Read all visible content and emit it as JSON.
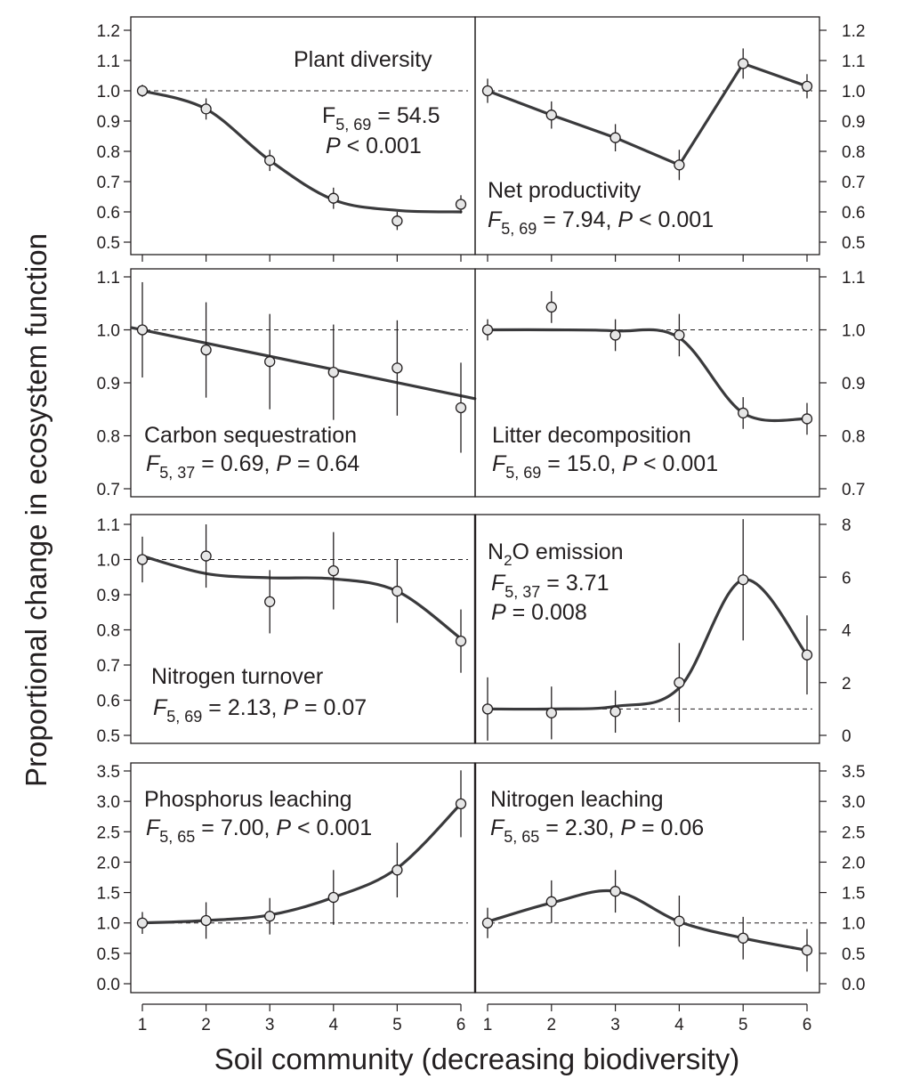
{
  "figure": {
    "ylabel": "Proportional change in ecosystem function",
    "xlabel": "Soil community (decreasing biodiversity)"
  },
  "chart_data": [
    {
      "type": "line",
      "title": "Plant diversity",
      "stat_line1": {
        "F": "F",
        "sub": "5, 69",
        "rest": " = 54.5"
      },
      "stat_line2": {
        "pre": "",
        "P": "P",
        "rest": " < 0.001"
      },
      "x": [
        1,
        2,
        3,
        4,
        5,
        6
      ],
      "y": [
        1.0,
        0.94,
        0.77,
        0.645,
        0.57,
        0.625
      ],
      "err": [
        0.02,
        0.035,
        0.035,
        0.035,
        0.03,
        0.03
      ],
      "fit": [
        1.0,
        0.94,
        0.77,
        0.64,
        0.605,
        0.6
      ],
      "fit_smooth": true,
      "ylim": [
        0.48,
        1.22
      ],
      "yticks": [
        "0.5",
        "0.6",
        "0.7",
        "0.8",
        "0.9",
        "1.0",
        "1.1",
        "1.2"
      ],
      "ytick_values": [
        0.5,
        0.6,
        0.7,
        0.8,
        0.9,
        1.0,
        1.1,
        1.2
      ],
      "ref": 1.0,
      "axis_side": "left"
    },
    {
      "type": "line",
      "title": "Net productivity",
      "stat_line1": {
        "F": "F",
        "sub": "5, 69",
        "rest": " = 7.94,  ",
        "P": "P",
        "rest2": " < 0.001"
      },
      "x": [
        1,
        2,
        3,
        4,
        5,
        6
      ],
      "y": [
        1.0,
        0.92,
        0.845,
        0.755,
        1.09,
        1.015
      ],
      "err": [
        0.04,
        0.045,
        0.045,
        0.05,
        0.05,
        0.04
      ],
      "fit": [
        1.0,
        0.92,
        0.845,
        0.755,
        1.09,
        1.015
      ],
      "fit_smooth": false,
      "ylim": [
        0.48,
        1.22
      ],
      "yticks": [
        "0.5",
        "0.6",
        "0.7",
        "0.8",
        "0.9",
        "1.0",
        "1.1",
        "1.2"
      ],
      "ytick_values": [
        0.5,
        0.6,
        0.7,
        0.8,
        0.9,
        1.0,
        1.1,
        1.2
      ],
      "ref": 1.0,
      "axis_side": "right"
    },
    {
      "type": "line",
      "title": "Carbon sequestration",
      "stat_line1": {
        "F": "F",
        "sub": "5, 37",
        "rest": " = 0.69,  ",
        "P": "P",
        "rest2": " = 0.64"
      },
      "x": [
        1,
        2,
        3,
        4,
        5,
        6
      ],
      "y": [
        1.0,
        0.962,
        0.94,
        0.92,
        0.928,
        0.853
      ],
      "err": [
        0.09,
        0.09,
        0.09,
        0.09,
        0.09,
        0.085
      ],
      "fit_line": {
        "x0": 0.83,
        "y0": 1.004,
        "x1": 6.22,
        "y1": 0.87
      },
      "ylim": [
        0.69,
        1.12
      ],
      "yticks": [
        "0.7",
        "0.8",
        "0.9",
        "1.0",
        "1.1"
      ],
      "ytick_values": [
        0.7,
        0.8,
        0.9,
        1.0,
        1.1
      ],
      "ref": 1.0,
      "axis_side": "left"
    },
    {
      "type": "line",
      "title": "Litter decomposition",
      "stat_line1": {
        "F": "F",
        "sub": "5, 69",
        "rest": " = 15.0,  ",
        "P": "P",
        "rest2": " < 0.001"
      },
      "x": [
        1,
        2,
        3,
        4,
        5,
        6
      ],
      "y": [
        1.0,
        1.043,
        0.99,
        0.99,
        0.843,
        0.832
      ],
      "err": [
        0.02,
        0.03,
        0.03,
        0.04,
        0.03,
        0.03
      ],
      "fit": [
        1.0,
        1.0,
        0.998,
        0.985,
        0.843,
        0.832
      ],
      "fit_smooth": true,
      "ylim": [
        0.69,
        1.12
      ],
      "yticks": [
        "0.7",
        "0.8",
        "0.9",
        "1.0",
        "1.1"
      ],
      "ytick_values": [
        0.7,
        0.8,
        0.9,
        1.0,
        1.1
      ],
      "ref": 1.0,
      "axis_side": "right"
    },
    {
      "type": "line",
      "title": "Nitrogen turnover",
      "stat_line1": {
        "F": "F",
        "sub": "5, 69",
        "rest": " = 2.13,  ",
        "P": "P",
        "rest2": " = 0.07"
      },
      "x": [
        1,
        2,
        3,
        4,
        5,
        6
      ],
      "y": [
        1.0,
        1.01,
        0.88,
        0.968,
        0.91,
        0.768
      ],
      "err": [
        0.065,
        0.09,
        0.09,
        0.11,
        0.09,
        0.09
      ],
      "fit": [
        1.01,
        0.96,
        0.948,
        0.945,
        0.91,
        0.775
      ],
      "fit_smooth": true,
      "ylim": [
        0.48,
        1.12
      ],
      "yticks": [
        "0.5",
        "0.6",
        "0.7",
        "0.8",
        "0.9",
        "1.0",
        "1.1"
      ],
      "ytick_values": [
        0.5,
        0.6,
        0.7,
        0.8,
        0.9,
        1.0,
        1.1
      ],
      "ref": 1.0,
      "axis_side": "left"
    },
    {
      "type": "line",
      "title_pre": "N",
      "title_sub": "2",
      "title_post": "O emission",
      "stat_line1": {
        "F": "F",
        "sub": "5, 37",
        "rest": " = 3.71"
      },
      "stat_line2": {
        "pre": "",
        "P": "P",
        "rest": " = 0.008"
      },
      "x": [
        1,
        2,
        3,
        4,
        5,
        6
      ],
      "y": [
        1.0,
        0.85,
        0.9,
        2.0,
        5.9,
        3.05
      ],
      "err": [
        1.2,
        1.0,
        0.8,
        1.5,
        2.3,
        1.5
      ],
      "fit": [
        1.0,
        1.0,
        1.1,
        1.8,
        5.9,
        3.05
      ],
      "fit_smooth": true,
      "ylim": [
        -0.5,
        8.2
      ],
      "yticks": [
        "0",
        "2",
        "4",
        "6",
        "8"
      ],
      "ytick_values": [
        0,
        2,
        4,
        6,
        8
      ],
      "ref": 1.0,
      "axis_side": "right"
    },
    {
      "type": "line",
      "title": "Phosphorus leaching",
      "stat_line1": {
        "F": "F",
        "sub": "5, 65",
        "rest": " = 7.00,  ",
        "P": "P",
        "rest2": " < 0.001"
      },
      "x": [
        1,
        2,
        3,
        4,
        5,
        6
      ],
      "y": [
        1.0,
        1.04,
        1.11,
        1.42,
        1.87,
        2.96
      ],
      "err": [
        0.18,
        0.3,
        0.3,
        0.45,
        0.45,
        0.55
      ],
      "fit": [
        1.0,
        1.04,
        1.13,
        1.42,
        1.9,
        2.96
      ],
      "fit_smooth": true,
      "ylim": [
        -0.1,
        3.6
      ],
      "yticks": [
        "0.0",
        "0.5",
        "1.0",
        "1.5",
        "2.0",
        "2.5",
        "3.0",
        "3.5"
      ],
      "ytick_values": [
        0,
        0.5,
        1,
        1.5,
        2,
        2.5,
        3,
        3.5
      ],
      "ref": 1.0,
      "axis_side": "left"
    },
    {
      "type": "line",
      "title": "Nitrogen leaching",
      "stat_line1": {
        "F": "F",
        "sub": "5, 65",
        "rest": " = 2.30,  ",
        "P": "P",
        "rest2": " = 0.06"
      },
      "x": [
        1,
        2,
        3,
        4,
        5,
        6
      ],
      "y": [
        1.0,
        1.35,
        1.52,
        1.03,
        0.75,
        0.55
      ],
      "err": [
        0.25,
        0.35,
        0.35,
        0.42,
        0.35,
        0.35
      ],
      "fit": [
        1.02,
        1.33,
        1.52,
        1.02,
        0.75,
        0.55
      ],
      "fit_smooth": true,
      "ylim": [
        -0.1,
        3.6
      ],
      "yticks": [
        "0.0",
        "0.5",
        "1.0",
        "1.5",
        "2.0",
        "2.5",
        "3.0",
        "3.5"
      ],
      "ytick_values": [
        0,
        0.5,
        1,
        1.5,
        2,
        2.5,
        3,
        3.5
      ],
      "ref": 1.0,
      "axis_side": "right"
    }
  ],
  "x_ticks": [
    "1",
    "2",
    "3",
    "4",
    "5",
    "6"
  ],
  "x_tick_values": [
    1,
    2,
    3,
    4,
    5,
    6
  ]
}
